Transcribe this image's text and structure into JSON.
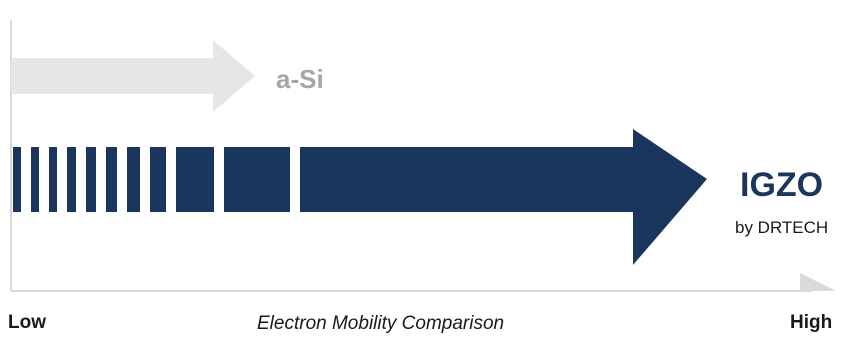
{
  "colors": {
    "primary": "#1b365d",
    "muted": "#e6e6e6",
    "muted_text": "#a6a6a6",
    "axis": "#d9d9d9",
    "text": "#1a1a1a"
  },
  "arrows": {
    "asi": {
      "label": "a-Si"
    },
    "igzo": {
      "label": "IGZO",
      "sublabel": "by DRTECH"
    }
  },
  "axis": {
    "low_label": "Low",
    "high_label": "High",
    "caption": "Electron  Mobility Comparison"
  }
}
